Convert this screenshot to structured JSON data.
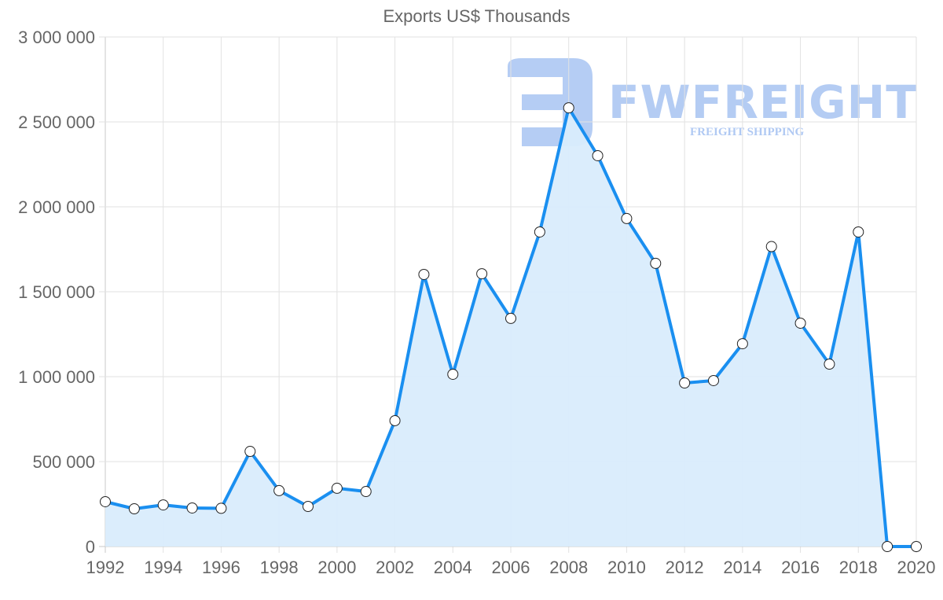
{
  "chart_data": {
    "type": "area",
    "title": "Exports US$ Thousands",
    "xlabel": "",
    "ylabel": "",
    "x": [
      1992,
      1993,
      1994,
      1995,
      1996,
      1997,
      1998,
      1999,
      2000,
      2001,
      2002,
      2003,
      2004,
      2005,
      2006,
      2007,
      2008,
      2009,
      2010,
      2011,
      2012,
      2013,
      2014,
      2015,
      2016,
      2017,
      2018,
      2019,
      2020
    ],
    "series": [
      {
        "name": "Exports US$ Thousands",
        "values": [
          264000,
          222000,
          245000,
          227000,
          225000,
          560000,
          329000,
          236000,
          343000,
          324000,
          741000,
          1602000,
          1014000,
          1606000,
          1343000,
          1852000,
          2583000,
          2301000,
          1931000,
          1667000,
          963000,
          977000,
          1194000,
          1766000,
          1315000,
          1074000,
          1852000,
          0,
          0
        ],
        "line_color": "#1a8ff0",
        "fill_color": "#d9ecfc",
        "marker_fill": "#ffffff",
        "marker_stroke": "#222222"
      }
    ],
    "ylim": [
      0,
      3000000
    ],
    "xlim": [
      1992,
      2020
    ],
    "y_ticks": [
      0,
      500000,
      1000000,
      1500000,
      2000000,
      2500000,
      3000000
    ],
    "y_tick_labels": [
      "0",
      "500 000",
      "1 000 000",
      "1 500 000",
      "2 000 000",
      "2 500 000",
      "3 000 000"
    ],
    "x_ticks": [
      1992,
      1994,
      1996,
      1998,
      2000,
      2002,
      2004,
      2006,
      2008,
      2010,
      2012,
      2014,
      2016,
      2018,
      2020
    ],
    "x_tick_labels": [
      "1992",
      "1994",
      "1996",
      "1998",
      "2000",
      "2002",
      "2004",
      "2006",
      "2008",
      "2010",
      "2012",
      "2014",
      "2016",
      "2018",
      "2020"
    ],
    "grid": true,
    "legend": "none"
  },
  "watermark": {
    "brand": "FWFREIGHT",
    "tagline": "FREIGHT SHIPPING",
    "color": "#a8c4f2"
  },
  "colors": {
    "axis_text": "#666666",
    "grid": "#e2e2e2",
    "axis_line": "#c8c8c8"
  }
}
